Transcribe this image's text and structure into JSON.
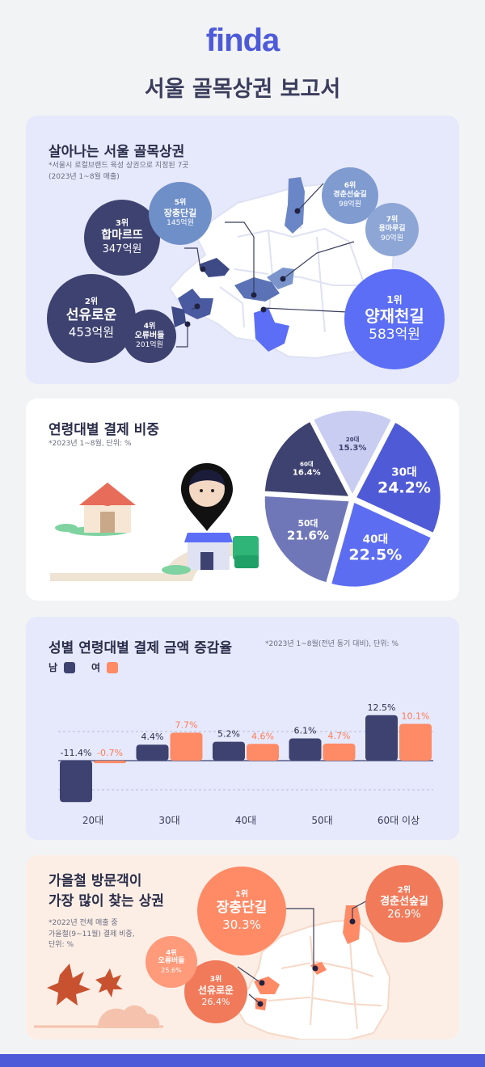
{
  "header": {
    "logo": "finda",
    "title": "서울 골목상권 보고서"
  },
  "section1": {
    "title": "살아나는 서울 골목상권",
    "note1": "*서울시 로컬브랜드 육성 상권으로 지정된 7곳",
    "note2": "(2023년 1~8월 매출)",
    "ranks": [
      {
        "rank": "1위",
        "name": "양재천길",
        "value": "583억원"
      },
      {
        "rank": "2위",
        "name": "선유로운",
        "value": "453억원"
      },
      {
        "rank": "3위",
        "name": "합마르뜨",
        "value": "347억원"
      },
      {
        "rank": "4위",
        "name": "오류버들",
        "value": "201억원"
      },
      {
        "rank": "5위",
        "name": "장충단길",
        "value": "145억원"
      },
      {
        "rank": "6위",
        "name": "경춘선숲길",
        "value": "98억원"
      },
      {
        "rank": "7위",
        "name": "용마루길",
        "value": "90억원"
      }
    ]
  },
  "section2": {
    "title": "연령대별 결제 비중",
    "note": "*2023년 1~8월, 단위: %"
  },
  "section3": {
    "title": "성별 연령대별 결제 금액 증감율",
    "note": "*2023년 1~8월(전년 동기 대비), 단위: %",
    "legend_male": "남",
    "legend_female": "여"
  },
  "section4": {
    "title1": "가을철 방문객이",
    "title2": "가장 많이 찾는 상권",
    "note1": "*2022년 전체 매출 중",
    "note2": "가을철(9~11월) 결제 비중,",
    "note3": "단위: %",
    "ranks": [
      {
        "rank": "1위",
        "name": "장충단길",
        "value": "30.3%"
      },
      {
        "rank": "2위",
        "name": "경춘선숲길",
        "value": "26.9%"
      },
      {
        "rank": "3위",
        "name": "선유로운",
        "value": "26.4%"
      },
      {
        "rank": "4위",
        "name": "오류버들",
        "value": "25.6%"
      }
    ]
  },
  "colors": {
    "brand": "#4e5bd9",
    "male": "#3e4270",
    "female": "#ff8a66"
  },
  "chart_data": [
    {
      "type": "pie",
      "title": "연령대별 결제 비중",
      "categories": [
        "20대",
        "30대",
        "40대",
        "50대",
        "60대"
      ],
      "values": [
        15.3,
        24.2,
        22.5,
        21.6,
        16.4
      ],
      "value_labels": [
        "15.3%",
        "24.2%",
        "22.5%",
        "21.6%",
        "16.4%"
      ],
      "colors": [
        "#c9cdf2",
        "#4f5ad6",
        "#5d6df2",
        "#7077b8",
        "#3e4270"
      ]
    },
    {
      "type": "bar",
      "title": "성별 연령대별 결제 금액 증감율",
      "categories": [
        "20대",
        "30대",
        "40대",
        "50대",
        "60대 이상"
      ],
      "series": [
        {
          "name": "남",
          "values": [
            -11.4,
            4.4,
            5.2,
            6.1,
            12.5
          ],
          "labels": [
            "-11.4%",
            "4.4%",
            "5.2%",
            "6.1%",
            "12.5%"
          ]
        },
        {
          "name": "여",
          "values": [
            -0.7,
            7.7,
            4.6,
            4.7,
            10.1
          ],
          "labels": [
            "-0.7%",
            "7.7%",
            "4.6%",
            "4.7%",
            "10.1%"
          ]
        }
      ],
      "ylim": [
        -12,
        14
      ]
    }
  ]
}
